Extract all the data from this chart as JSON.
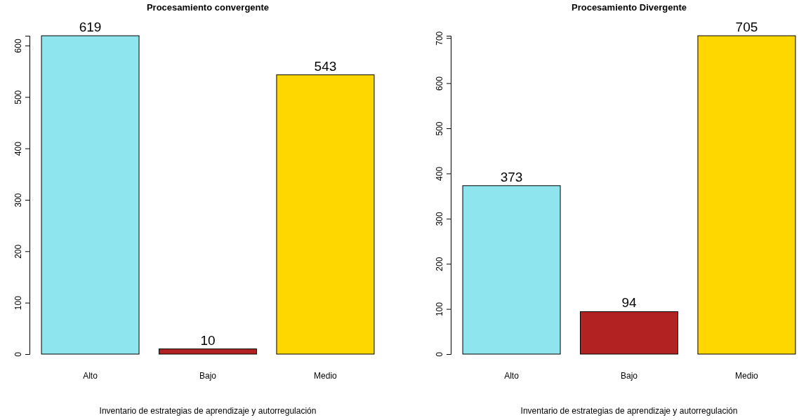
{
  "chart_data": [
    {
      "type": "bar",
      "title": "Procesamiento convergente",
      "xlabel": "Inventario de estrategias de aprendizaje y autorregulación",
      "categories": [
        "Alto",
        "Bajo",
        "Medio"
      ],
      "values": [
        619,
        10,
        543
      ],
      "colors": [
        "#8ee5ee",
        "#b22222",
        "#ffd700"
      ],
      "ylim": [
        0,
        619
      ],
      "yticks": [
        0,
        100,
        200,
        300,
        400,
        500,
        600
      ],
      "data_labels": true,
      "grid": false
    },
    {
      "type": "bar",
      "title": "Procesamiento Divergente",
      "xlabel": "Inventario de estrategias de aprendizaje y autorregulación",
      "categories": [
        "Alto",
        "Bajo",
        "Medio"
      ],
      "values": [
        373,
        94,
        705
      ],
      "colors": [
        "#8ee5ee",
        "#b22222",
        "#ffd700"
      ],
      "ylim": [
        0,
        705
      ],
      "yticks": [
        0,
        100,
        200,
        300,
        400,
        500,
        600,
        700
      ],
      "data_labels": true,
      "grid": false
    }
  ]
}
